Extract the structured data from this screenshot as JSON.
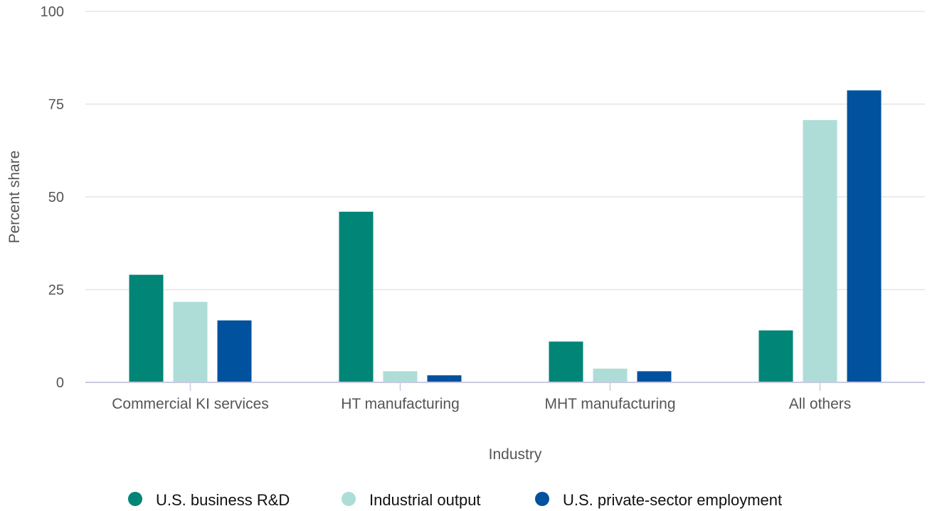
{
  "chart_data": {
    "type": "bar",
    "xlabel": "Industry",
    "ylabel": "Percent share",
    "ylim": [
      0,
      100
    ],
    "yticks": [
      "0",
      "25",
      "50",
      "75",
      "100"
    ],
    "categories": [
      "Commercial KI services",
      "HT manufacturing",
      "MHT manufacturing",
      "All others"
    ],
    "series": [
      {
        "name": "U.S. business R&D",
        "color": "#008577",
        "values": [
          29,
          46,
          11,
          14
        ]
      },
      {
        "name": "Industrial output",
        "color": "#aeddd8",
        "values": [
          21.7,
          3,
          3.7,
          70.7
        ]
      },
      {
        "name": "U.S. private-sector employment",
        "color": "#00519e",
        "values": [
          16.7,
          1.9,
          3,
          78.7
        ]
      }
    ],
    "grid": true,
    "legend_position": "bottom"
  }
}
